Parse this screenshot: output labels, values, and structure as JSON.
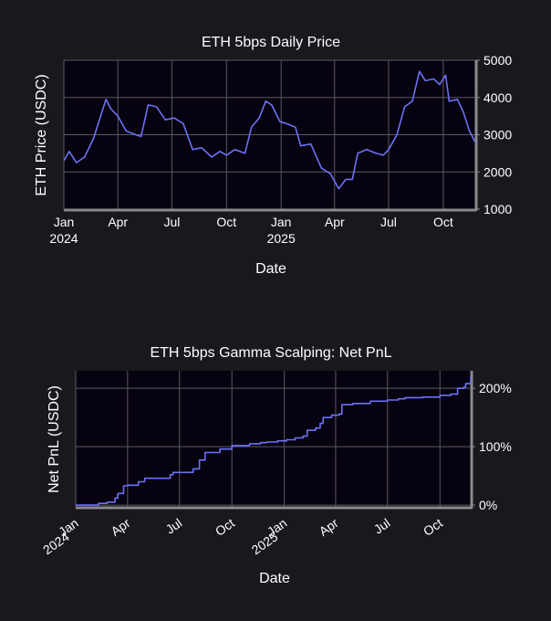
{
  "colors": {
    "background": "#1a181d",
    "plot_background": "#07020f",
    "line": "#6b72f5",
    "grid": "#5b5961",
    "axis_spine": "#8a8a8e",
    "text": "#ffffff"
  },
  "chart_data": [
    {
      "type": "line",
      "title": "ETH 5bps Daily Price",
      "xlabel": "Date",
      "ylabel": "ETH Price (USDC)",
      "x_range": [
        "2024-01-01",
        "2025-11-24"
      ],
      "ylim": [
        1000,
        5000
      ],
      "y_ticks": [
        "1000",
        "2000",
        "3000",
        "4000",
        "5000"
      ],
      "x_ticks": [
        {
          "date": "2024-01-01",
          "label": "Jan",
          "year": "2024"
        },
        {
          "date": "2024-04-01",
          "label": "Apr",
          "year": ""
        },
        {
          "date": "2024-07-01",
          "label": "Jul",
          "year": ""
        },
        {
          "date": "2024-10-01",
          "label": "Oct",
          "year": ""
        },
        {
          "date": "2025-01-01",
          "label": "Jan",
          "year": "2025"
        },
        {
          "date": "2025-04-01",
          "label": "Apr",
          "year": ""
        },
        {
          "date": "2025-07-01",
          "label": "Jul",
          "year": ""
        },
        {
          "date": "2025-10-01",
          "label": "Oct",
          "year": ""
        }
      ],
      "grid": true,
      "y_axis_side": "right",
      "series": [
        {
          "x": [
            "2024-01-01",
            "2024-01-10",
            "2024-01-22",
            "2024-02-05",
            "2024-02-20",
            "2024-03-01",
            "2024-03-12",
            "2024-03-20",
            "2024-04-01",
            "2024-04-15",
            "2024-05-01",
            "2024-05-10",
            "2024-05-22",
            "2024-06-05",
            "2024-06-20",
            "2024-07-05",
            "2024-07-20",
            "2024-08-05",
            "2024-08-20",
            "2024-09-06",
            "2024-09-20",
            "2024-10-01",
            "2024-10-15",
            "2024-11-01",
            "2024-11-12",
            "2024-11-25",
            "2024-12-06",
            "2024-12-16",
            "2024-12-30",
            "2025-01-10",
            "2025-01-25",
            "2025-02-03",
            "2025-02-20",
            "2025-03-10",
            "2025-03-25",
            "2025-04-08",
            "2025-04-20",
            "2025-05-01",
            "2025-05-10",
            "2025-05-25",
            "2025-06-10",
            "2025-06-22",
            "2025-07-01",
            "2025-07-15",
            "2025-07-28",
            "2025-08-10",
            "2025-08-22",
            "2025-09-01",
            "2025-09-15",
            "2025-09-25",
            "2025-10-05",
            "2025-10-11",
            "2025-10-25",
            "2025-11-04",
            "2025-11-14",
            "2025-11-24"
          ],
          "values": [
            2300,
            2550,
            2250,
            2400,
            2900,
            3400,
            3950,
            3700,
            3500,
            3100,
            3000,
            2950,
            3800,
            3750,
            3400,
            3450,
            3300,
            2600,
            2650,
            2400,
            2550,
            2450,
            2600,
            2500,
            3200,
            3450,
            3900,
            3800,
            3350,
            3300,
            3200,
            2700,
            2750,
            2100,
            1950,
            1550,
            1800,
            1800,
            2500,
            2600,
            2500,
            2450,
            2600,
            3000,
            3750,
            3900,
            4700,
            4450,
            4500,
            4350,
            4600,
            3900,
            3950,
            3600,
            3100,
            2800
          ]
        }
      ]
    },
    {
      "type": "line",
      "title": "ETH 5bps Gamma Scalping: Net PnL",
      "xlabel": "Date",
      "ylabel": "Net PnL (USDC)",
      "x_range": [
        "2024-01-01",
        "2025-11-24"
      ],
      "ylim": [
        -3,
        230
      ],
      "y_ticks": [
        "0%",
        "100%",
        "200%"
      ],
      "x_ticks": [
        {
          "date": "2024-01-01",
          "label": "Jan",
          "year": "2024"
        },
        {
          "date": "2024-04-01",
          "label": "Apr",
          "year": ""
        },
        {
          "date": "2024-07-01",
          "label": "Jul",
          "year": ""
        },
        {
          "date": "2024-10-01",
          "label": "Oct",
          "year": ""
        },
        {
          "date": "2025-01-01",
          "label": "Jan",
          "year": "2025"
        },
        {
          "date": "2025-04-01",
          "label": "Apr",
          "year": ""
        },
        {
          "date": "2025-07-01",
          "label": "Jul",
          "year": ""
        },
        {
          "date": "2025-10-01",
          "label": "Oct",
          "year": ""
        }
      ],
      "grid": true,
      "y_axis_side": "right",
      "x_tick_rotation": 35,
      "series": [
        {
          "x": [
            "2024-01-01",
            "2024-02-10",
            "2024-02-25",
            "2024-03-10",
            "2024-03-15",
            "2024-03-25",
            "2024-04-01",
            "2024-04-20",
            "2024-05-01",
            "2024-06-15",
            "2024-06-20",
            "2024-07-25",
            "2024-08-05",
            "2024-08-15",
            "2024-09-10",
            "2024-10-01",
            "2024-11-01",
            "2024-11-20",
            "2024-12-01",
            "2024-12-20",
            "2025-01-05",
            "2025-01-20",
            "2025-02-03",
            "2025-02-10",
            "2025-02-25",
            "2025-03-05",
            "2025-03-10",
            "2025-03-25",
            "2025-04-07",
            "2025-04-12",
            "2025-05-01",
            "2025-06-01",
            "2025-07-01",
            "2025-07-20",
            "2025-08-01",
            "2025-09-01",
            "2025-10-01",
            "2025-10-20",
            "2025-11-01",
            "2025-11-12",
            "2025-11-15",
            "2025-11-24"
          ],
          "values": [
            0,
            3,
            5,
            12,
            20,
            33,
            34,
            40,
            46,
            52,
            56,
            62,
            77,
            90,
            96,
            102,
            105,
            107,
            108,
            110,
            112,
            115,
            118,
            128,
            132,
            140,
            150,
            154,
            156,
            172,
            174,
            178,
            180,
            182,
            184,
            185,
            188,
            190,
            200,
            202,
            208,
            220
          ]
        }
      ]
    }
  ]
}
